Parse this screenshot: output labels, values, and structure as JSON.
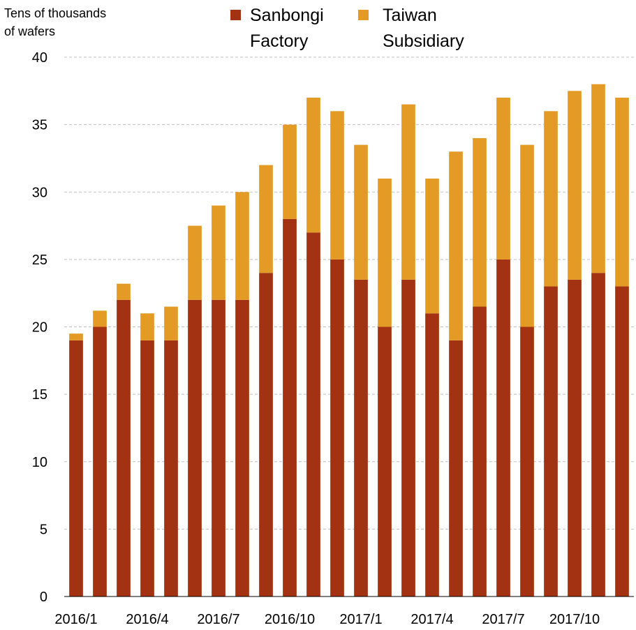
{
  "chart_data": {
    "type": "bar",
    "stacked": true,
    "title": "",
    "ylabel": "Tens of thousands of wafers",
    "ylabel_lines": [
      "Tens of thousands",
      "of wafers"
    ],
    "xlabel": "",
    "ylim": [
      0,
      40
    ],
    "yticks": [
      0,
      5,
      10,
      15,
      20,
      25,
      30,
      35,
      40
    ],
    "grid": true,
    "legend_position": "top",
    "categories": [
      "2016/1",
      "2016/2",
      "2016/3",
      "2016/4",
      "2016/5",
      "2016/6",
      "2016/7",
      "2016/8",
      "2016/9",
      "2016/10",
      "2016/11",
      "2016/12",
      "2017/1",
      "2017/2",
      "2017/3",
      "2017/4",
      "2017/5",
      "2017/6",
      "2017/7",
      "2017/8",
      "2017/9",
      "2017/10",
      "2017/11",
      "2017/12"
    ],
    "xtick_labels": [
      {
        "index": 0,
        "label": "2016/1"
      },
      {
        "index": 3,
        "label": "2016/4"
      },
      {
        "index": 6,
        "label": "2016/7"
      },
      {
        "index": 9,
        "label": "2016/10"
      },
      {
        "index": 12,
        "label": "2017/1"
      },
      {
        "index": 15,
        "label": "2017/4"
      },
      {
        "index": 18,
        "label": "2017/7"
      },
      {
        "index": 21,
        "label": "2017/10"
      }
    ],
    "series": [
      {
        "name": "Sanbongi Factory",
        "legend_lines": [
          "Sanbongi",
          "Factory"
        ],
        "color": "#a33212",
        "values": [
          19,
          20,
          22,
          19,
          19,
          22,
          22,
          22,
          24,
          28,
          27,
          25,
          23.5,
          20,
          23.5,
          21,
          19,
          21.5,
          25,
          20,
          23,
          23.5,
          24,
          23
        ]
      },
      {
        "name": "Taiwan Subsidiary",
        "legend_lines": [
          "Taiwan",
          "Subsidiary"
        ],
        "color": "#e39b26",
        "values": [
          0.5,
          1.2,
          1.2,
          2,
          2.5,
          5.5,
          7,
          8,
          8,
          7,
          10,
          11,
          10,
          11,
          13,
          10,
          14,
          12.5,
          12,
          13.5,
          13,
          14,
          14,
          14
        ]
      }
    ]
  }
}
